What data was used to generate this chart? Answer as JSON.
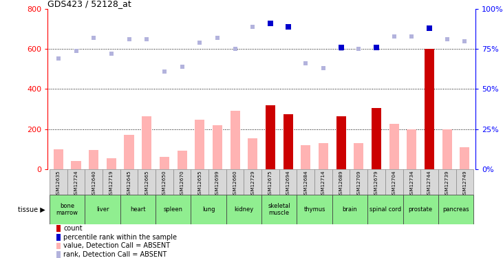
{
  "title": "GDS423 / 52128_at",
  "samples": [
    "GSM12635",
    "GSM12724",
    "GSM12640",
    "GSM12719",
    "GSM12645",
    "GSM12665",
    "GSM12650",
    "GSM12670",
    "GSM12655",
    "GSM12699",
    "GSM12660",
    "GSM12729",
    "GSM12675",
    "GSM12694",
    "GSM12684",
    "GSM12714",
    "GSM12689",
    "GSM12709",
    "GSM12679",
    "GSM12704",
    "GSM12734",
    "GSM12744",
    "GSM12739",
    "GSM12749"
  ],
  "tissue_groups": [
    {
      "label": "bone\nmarrow",
      "start": 0,
      "end": 1
    },
    {
      "label": "liver",
      "start": 2,
      "end": 3
    },
    {
      "label": "heart",
      "start": 4,
      "end": 5
    },
    {
      "label": "spleen",
      "start": 6,
      "end": 7
    },
    {
      "label": "lung",
      "start": 8,
      "end": 9
    },
    {
      "label": "kidney",
      "start": 10,
      "end": 11
    },
    {
      "label": "skeletal\nmuscle",
      "start": 12,
      "end": 13
    },
    {
      "label": "thymus",
      "start": 14,
      "end": 15
    },
    {
      "label": "brain",
      "start": 16,
      "end": 17
    },
    {
      "label": "spinal cord",
      "start": 18,
      "end": 19
    },
    {
      "label": "prostate",
      "start": 20,
      "end": 21
    },
    {
      "label": "pancreas",
      "start": 22,
      "end": 23
    }
  ],
  "count_values": [
    null,
    null,
    null,
    null,
    null,
    null,
    null,
    null,
    null,
    null,
    null,
    null,
    320,
    275,
    null,
    null,
    265,
    null,
    305,
    null,
    null,
    600,
    null,
    null
  ],
  "value_absent": [
    100,
    40,
    95,
    55,
    170,
    265,
    60,
    90,
    245,
    220,
    290,
    155,
    null,
    null,
    120,
    130,
    null,
    130,
    null,
    225,
    200,
    null,
    200,
    110
  ],
  "rank_absent_pct": [
    69,
    74,
    82,
    72,
    81,
    81,
    61,
    64,
    79,
    82,
    75,
    89,
    null,
    null,
    66,
    63,
    75,
    75,
    null,
    83,
    83,
    null,
    81,
    80
  ],
  "percentile_pct": [
    null,
    null,
    null,
    null,
    null,
    null,
    null,
    null,
    null,
    null,
    null,
    null,
    91,
    89,
    null,
    null,
    76,
    null,
    76,
    null,
    null,
    88,
    null,
    null
  ],
  "ylim_left": [
    0,
    800
  ],
  "ylim_right": [
    0,
    100
  ],
  "yticks_left": [
    0,
    200,
    400,
    600,
    800
  ],
  "yticks_right": [
    0,
    25,
    50,
    75,
    100
  ],
  "count_color": "#cc0000",
  "value_absent_color": "#ffb3b3",
  "rank_absent_color": "#b3b3dd",
  "percentile_color": "#0000cc",
  "legend_items": [
    {
      "label": "count",
      "color": "#cc0000"
    },
    {
      "label": "percentile rank within the sample",
      "color": "#0000cc"
    },
    {
      "label": "value, Detection Call = ABSENT",
      "color": "#ffb3b3"
    },
    {
      "label": "rank, Detection Call = ABSENT",
      "color": "#b3b3dd"
    }
  ]
}
